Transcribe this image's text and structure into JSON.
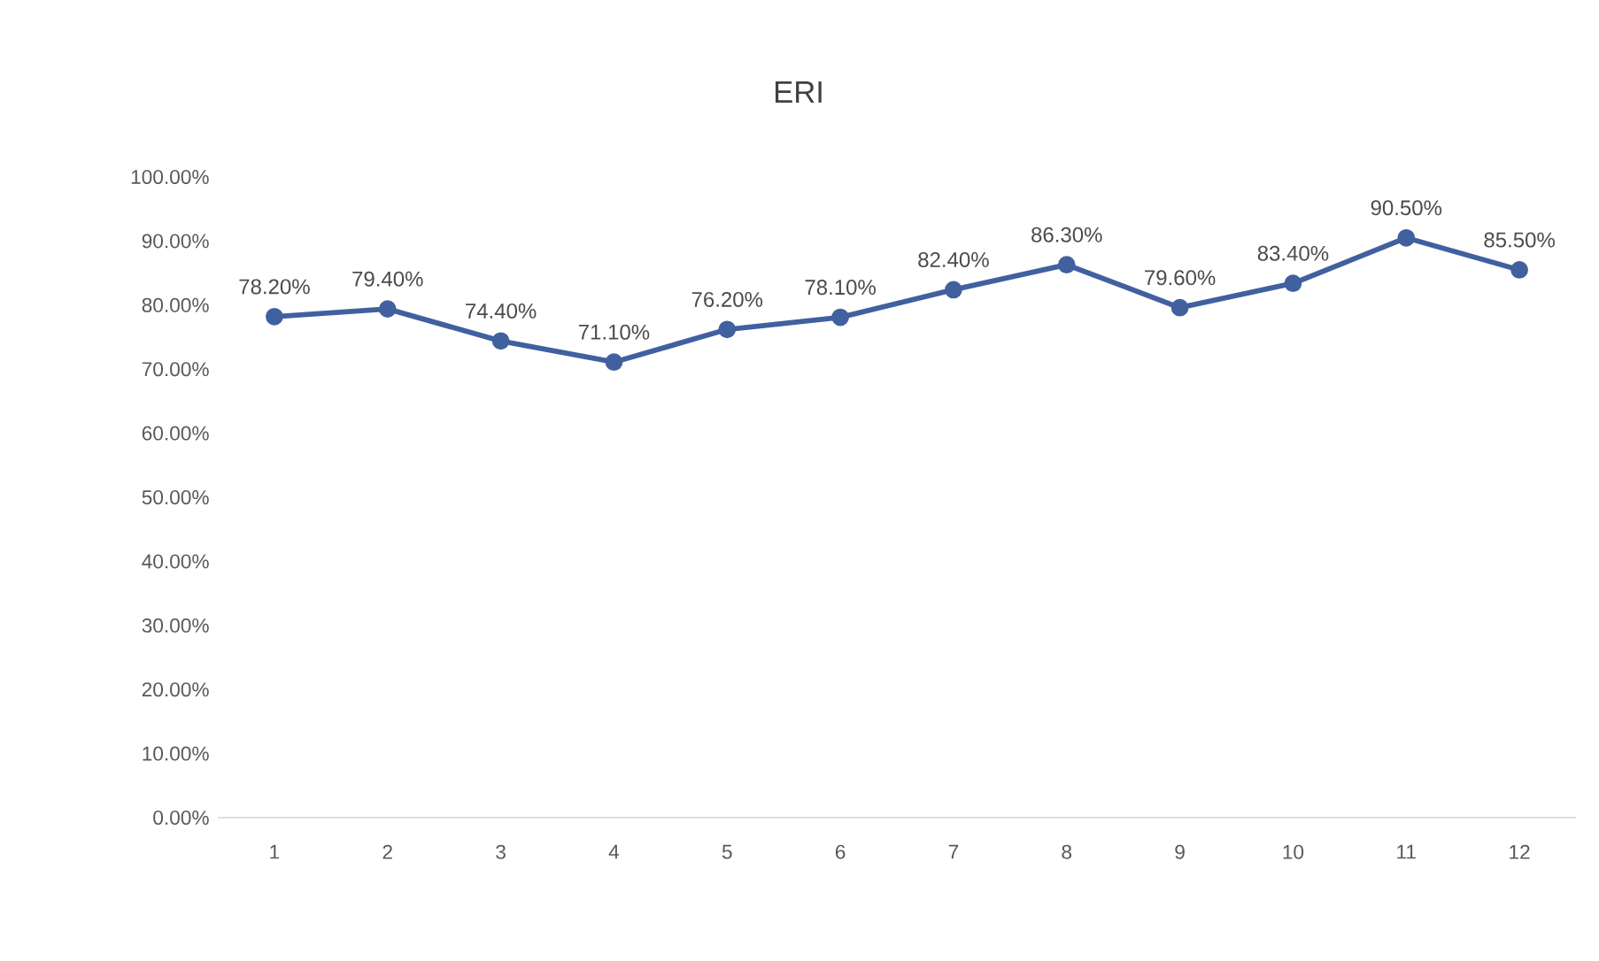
{
  "chart_data": {
    "type": "line",
    "title": "ERI",
    "categories": [
      "1",
      "2",
      "3",
      "4",
      "5",
      "6",
      "7",
      "8",
      "9",
      "10",
      "11",
      "12"
    ],
    "series": [
      {
        "color": "#41609f",
        "values": [
          78.2,
          79.4,
          74.4,
          71.1,
          76.2,
          78.1,
          82.4,
          86.3,
          79.6,
          83.4,
          90.5,
          85.5
        ],
        "value_labels": [
          "78.20%",
          "79.40%",
          "74.40%",
          "71.10%",
          "76.20%",
          "78.10%",
          "82.40%",
          "86.30%",
          "79.60%",
          "83.40%",
          "90.50%",
          "85.50%"
        ]
      }
    ],
    "ylim": [
      0,
      100
    ],
    "yticks": [
      {
        "value": 0,
        "label": "0.00%"
      },
      {
        "value": 10,
        "label": "10.00%"
      },
      {
        "value": 20,
        "label": "20.00%"
      },
      {
        "value": 30,
        "label": "30.00%"
      },
      {
        "value": 40,
        "label": "40.00%"
      },
      {
        "value": 50,
        "label": "50.00%"
      },
      {
        "value": 60,
        "label": "60.00%"
      },
      {
        "value": 70,
        "label": "70.00%"
      },
      {
        "value": 80,
        "label": "80.00%"
      },
      {
        "value": 90,
        "label": "90.00%"
      },
      {
        "value": 100,
        "label": "100.00%"
      }
    ],
    "marker": "circle",
    "line_style": "solid"
  }
}
